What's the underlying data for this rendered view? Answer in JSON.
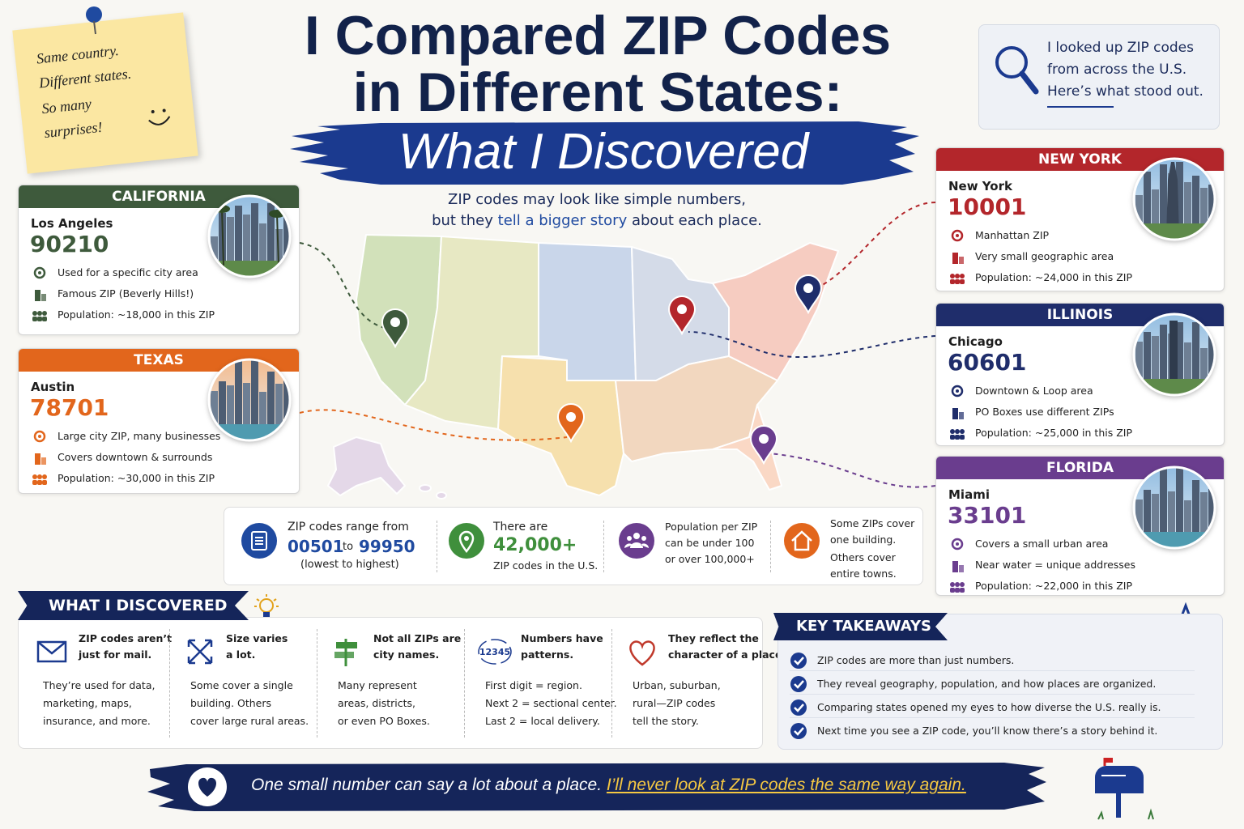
{
  "sticky_note": {
    "lines": [
      "Same country.",
      "Different states.",
      "So many",
      "surprises!"
    ]
  },
  "header": {
    "title_lines": [
      "I Compared ZIP Codes",
      "in Different States:"
    ],
    "subtitle": "What I Discovered"
  },
  "intro_box": {
    "lines": [
      "I looked up ZIP codes",
      "from across the U.S.",
      "Here’s what stood out."
    ]
  },
  "map_caption": {
    "line1": "ZIP codes may look like simple numbers,",
    "line2_parts": [
      "but they",
      "tell a bigger story",
      "about each place."
    ]
  },
  "states": [
    {
      "name": "CALIFORNIA",
      "color": "#3e5a3c",
      "city": "Los Angeles",
      "zip": "90210",
      "facts": [
        "Used for a specific city area",
        "Famous ZIP (Beverly Hills!)",
        "Population: ~18,000 in this ZIP"
      ]
    },
    {
      "name": "TEXAS",
      "color": "#e2661c",
      "city": "Austin",
      "zip": "78701",
      "facts": [
        "Large city ZIP, many businesses",
        "Covers downtown & surrounds",
        "Population: ~30,000 in this ZIP"
      ]
    },
    {
      "name": "NEW YORK",
      "color": "#b3262b",
      "city": "New York",
      "zip": "10001",
      "facts": [
        "Manhattan ZIP",
        "Very small geographic area",
        "Population: ~24,000 in this ZIP"
      ]
    },
    {
      "name": "ILLINOIS",
      "color": "#1f2d6b",
      "city": "Chicago",
      "zip": "60601",
      "facts": [
        "Downtown & Loop area",
        "PO Boxes use different ZIPs",
        "Population: ~25,000 in this ZIP"
      ]
    },
    {
      "name": "FLORIDA",
      "color": "#6a3d8e",
      "city": "Miami",
      "zip": "33101",
      "facts": [
        "Covers a small urban area",
        "Near water = unique addresses",
        "Population: ~22,000 in this ZIP"
      ]
    }
  ],
  "stats": {
    "range": {
      "lead": "ZIP codes range from",
      "low": "00501",
      "joiner": "to",
      "high": "99950",
      "note": "(lowest to highest)"
    },
    "count": {
      "lead": "There are",
      "big": "42,000+",
      "note": "ZIP codes in the U.S."
    },
    "population": {
      "lines": [
        "Population per ZIP",
        "can be under 100",
        "or over 100,000+"
      ]
    },
    "coverage": {
      "lines": [
        "Some ZIPs cover",
        "one building.",
        "Others cover",
        "entire towns."
      ]
    }
  },
  "discoveries": {
    "title": "WHAT I DISCOVERED",
    "items": [
      {
        "heading": [
          "ZIP codes aren’t",
          "just for mail."
        ],
        "body": [
          "They’re used for data,",
          "marketing, maps,",
          "insurance, and more."
        ]
      },
      {
        "heading": [
          "Size varies",
          "a lot."
        ],
        "body": [
          "Some cover a single",
          "building. Others",
          "cover large rural areas."
        ]
      },
      {
        "heading": [
          "Not all ZIPs are",
          "city names."
        ],
        "body": [
          "Many represent",
          "areas, districts,",
          "or even PO Boxes."
        ]
      },
      {
        "heading": [
          "Numbers have",
          "patterns."
        ],
        "body": [
          "First digit = region.",
          "Next 2 = sectional center.",
          "Last 2 = local delivery."
        ],
        "icon_text": "12345"
      },
      {
        "heading": [
          "They reflect the",
          "character of a place."
        ],
        "body": [
          "Urban, suburban,",
          "rural—ZIP codes",
          "tell the story."
        ]
      }
    ]
  },
  "takeaways": {
    "title": "KEY TAKEAWAYS",
    "items": [
      "ZIP codes are more than just numbers.",
      "They reveal geography, population, and how places are organized.",
      "Comparing states opened my eyes to how diverse the U.S. really is.",
      "Next time you see a ZIP code, you’ll know there’s a story behind it."
    ]
  },
  "footer": {
    "text": "One small number can say a lot about a place.",
    "highlight": "I’ll never look at ZIP codes the same way again."
  }
}
